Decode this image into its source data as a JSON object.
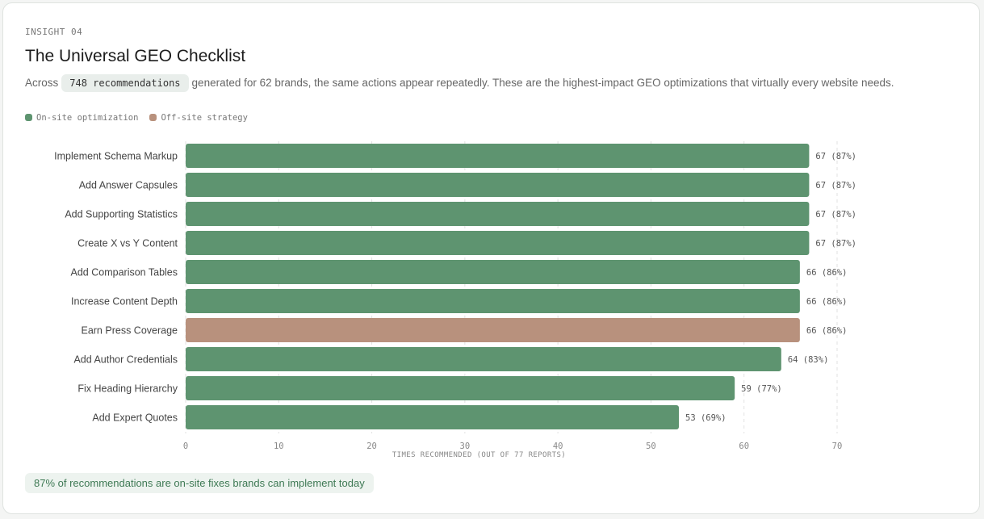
{
  "header": {
    "eyebrow": "INSIGHT 04",
    "title": "The Universal GEO Checklist",
    "subtitle_pre": "Across",
    "subtitle_pill": "748 recommendations",
    "subtitle_post": "generated for 62 brands, the same actions appear repeatedly. These are the highest-impact GEO optimizations that virtually every website needs."
  },
  "legend": [
    {
      "label": "On-site optimization",
      "color": "#5e9470"
    },
    {
      "label": "Off-site strategy",
      "color": "#b8917d"
    }
  ],
  "callout": "87% of recommendations are on-site fixes brands can implement today",
  "chart_data": {
    "type": "bar",
    "orientation": "horizontal",
    "xlabel": "TIMES RECOMMENDED (OUT OF 77 REPORTS)",
    "xlim": [
      0,
      70
    ],
    "xticks": [
      0,
      10,
      20,
      30,
      40,
      50,
      60,
      70
    ],
    "grid": true,
    "categories": [
      "Implement Schema Markup",
      "Add Answer Capsules",
      "Add Supporting Statistics",
      "Create X vs Y Content",
      "Add Comparison Tables",
      "Increase Content Depth",
      "Earn Press Coverage",
      "Add Author Credentials",
      "Fix Heading Hierarchy",
      "Add Expert Quotes"
    ],
    "values": [
      67,
      67,
      67,
      67,
      66,
      66,
      66,
      64,
      59,
      53
    ],
    "labels": [
      "67 (87%)",
      "67 (87%)",
      "67 (87%)",
      "67 (87%)",
      "66 (86%)",
      "66 (86%)",
      "66 (86%)",
      "64 (83%)",
      "59 (77%)",
      "53 (69%)"
    ],
    "types": [
      "On-site optimization",
      "On-site optimization",
      "On-site optimization",
      "On-site optimization",
      "On-site optimization",
      "On-site optimization",
      "Off-site strategy",
      "On-site optimization",
      "On-site optimization",
      "On-site optimization"
    ]
  }
}
